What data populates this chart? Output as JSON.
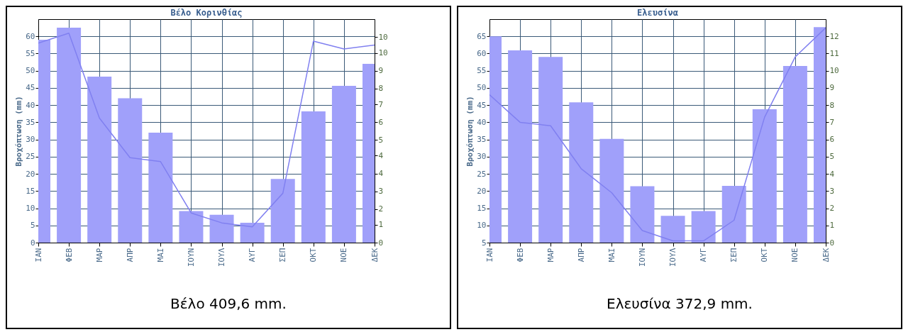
{
  "chart_data": [
    {
      "type": "bar",
      "title": "Βέλο Κορινθίας",
      "ylabel": "Βροχόπτωση (mm)",
      "categories": [
        "ΙΑΝ",
        "ΦΕΒ",
        "ΜΑΡ",
        "ΑΠΡ",
        "ΜΑΙ",
        "ΙΟΥΝ",
        "ΙΟΥΛ",
        "ΑΥΓ",
        "ΣΕΠ",
        "ΟΚΤ",
        "ΝΟΕ",
        "ΔΕΚ"
      ],
      "series": [
        {
          "color": "#a0a0fa",
          "values": [
            59,
            62.5,
            48.3,
            42,
            32,
            9.2,
            8.1,
            5.8,
            18.5,
            38.2,
            45.6,
            52
          ]
        },
        {
          "type": "line",
          "axis": "y2",
          "color": "#8080f0",
          "values": [
            10.1,
            10.6,
            6.3,
            4.3,
            4.1,
            1.5,
            1.0,
            0.8,
            2.5,
            10.2,
            9.8,
            10.0
          ]
        }
      ],
      "ylim": [
        0,
        65
      ],
      "yticks": [
        0,
        5,
        10,
        15,
        20,
        25,
        30,
        35,
        40,
        45,
        50,
        55,
        60
      ],
      "y2lim": [
        0,
        11.31
      ],
      "y2ticks": [
        0,
        {
          "value": 0.9,
          "label": "1"
        },
        {
          "value": 1.7,
          "label": "2"
        },
        {
          "value": 2.6,
          "label": "3"
        },
        {
          "value": 3.5,
          "label": "4"
        },
        {
          "value": 4.4,
          "label": "4"
        },
        {
          "value": 5.2,
          "label": "5"
        },
        {
          "value": 6.1,
          "label": "6"
        },
        {
          "value": 7.0,
          "label": "7"
        },
        {
          "value": 7.8,
          "label": "8"
        },
        {
          "value": 8.7,
          "label": "9"
        },
        {
          "value": 9.6,
          "label": "10"
        },
        {
          "value": 10.4,
          "label": "10"
        }
      ],
      "grid": true,
      "annotations": [
        "Βέλο 409,6 mm."
      ]
    },
    {
      "type": "bar",
      "title": "Ελευσίνα",
      "ylabel": "Βροχόπτωση (mm)",
      "categories": [
        "ΙΑΝ",
        "ΦΕΒ",
        "ΜΑΡ",
        "ΑΠΡ",
        "ΜΑΙ",
        "ΙΟΥΝ",
        "ΙΟΥΛ",
        "ΑΥΓ",
        "ΣΕΠ",
        "ΟΚΤ",
        "ΝΟΕ",
        "ΔΕΚ"
      ],
      "series": [
        {
          "color": "#a0a0fa",
          "values": [
            65,
            60.9,
            59,
            45.8,
            35.2,
            21.4,
            12.8,
            14.2,
            21.5,
            43.8,
            56.4,
            67.7
          ]
        },
        {
          "type": "line",
          "axis": "y2",
          "color": "#8080f0",
          "values": [
            8.6,
            7.0,
            6.8,
            4.3,
            2.9,
            0.7,
            0.1,
            0.1,
            1.3,
            7.3,
            10.8,
            12.5
          ]
        }
      ],
      "ylim": [
        5,
        70
      ],
      "yticks": [
        5,
        10,
        15,
        20,
        25,
        30,
        35,
        40,
        45,
        50,
        55,
        60,
        65
      ],
      "y2lim": [
        0,
        13
      ],
      "y2ticks": [
        0,
        1,
        2,
        3,
        4,
        5,
        6,
        7,
        8,
        9,
        10,
        11,
        12
      ],
      "grid": true,
      "annotations": [
        "Ελευσίνα 372,9 mm."
      ]
    }
  ]
}
